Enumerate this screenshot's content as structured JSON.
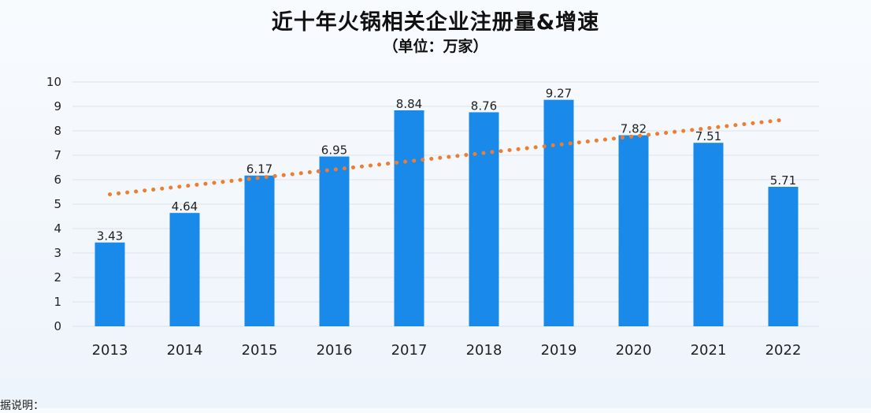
{
  "chart_data": {
    "type": "bar",
    "title": "近十年火锅相关企业注册量&增速",
    "subtitle": "（单位：万家）",
    "categories": [
      "2013",
      "2014",
      "2015",
      "2016",
      "2017",
      "2018",
      "2019",
      "2020",
      "2021",
      "2022"
    ],
    "values": [
      3.43,
      4.64,
      6.17,
      6.95,
      8.84,
      8.76,
      9.27,
      7.82,
      7.51,
      5.71
    ],
    "value_labels": [
      "3.43",
      "4.64",
      "6.17",
      "6.95",
      "8.84",
      "8.76",
      "9.27",
      "7.82",
      "7.51",
      "5.71"
    ],
    "y_ticks": [
      "0",
      "1",
      "2",
      "3",
      "4",
      "5",
      "6",
      "7",
      "8",
      "9",
      "10"
    ],
    "ylim": [
      0,
      10
    ],
    "grid": true,
    "trendline": {
      "type": "linear",
      "style": "dotted",
      "start": 5.4,
      "end": 8.45
    },
    "colors": {
      "bar": "#1a8aea",
      "trend": "#ee7d31",
      "grid": "#dde3ea"
    }
  },
  "footer": {
    "note": "数据说明："
  }
}
